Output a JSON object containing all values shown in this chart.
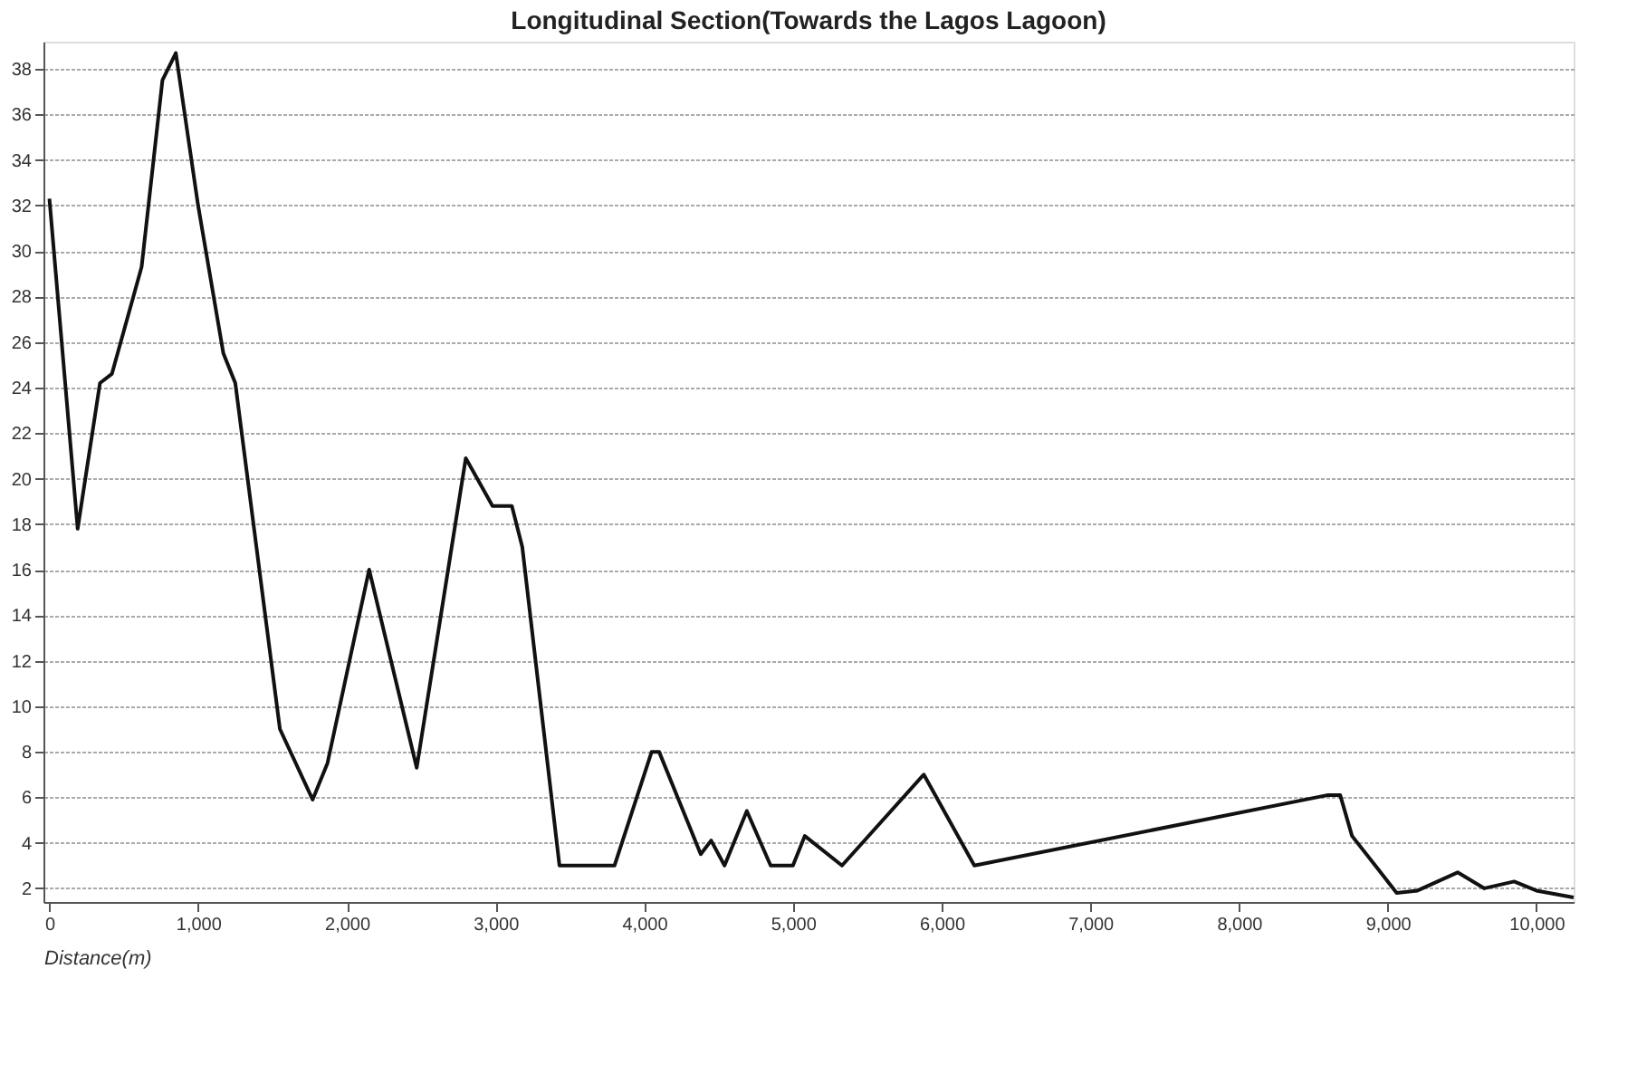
{
  "chart_data": {
    "type": "line",
    "title": "Longitudinal Section(Towards the Lagos Lagoon)",
    "xlabel": "Distance(m)",
    "x": [
      0,
      190,
      340,
      420,
      620,
      760,
      850,
      1000,
      1170,
      1250,
      1550,
      1770,
      1870,
      2150,
      2470,
      2800,
      2980,
      3110,
      3180,
      3430,
      3800,
      4050,
      4100,
      4380,
      4450,
      4540,
      4690,
      4850,
      5000,
      5080,
      5330,
      5880,
      6220,
      8600,
      8680,
      8760,
      9060,
      9200,
      9470,
      9650,
      9850,
      10000,
      10250
    ],
    "series": [
      {
        "color": "#111111",
        "values": [
          32.3,
          17.8,
          24.2,
          24.6,
          29.3,
          37.5,
          38.7,
          32,
          25.5,
          24.2,
          9,
          5.9,
          7.5,
          16,
          7.3,
          20.9,
          18.8,
          18.8,
          17,
          3,
          3,
          8,
          8,
          3.5,
          4.1,
          3,
          5.4,
          3,
          3,
          4.3,
          3,
          7,
          3,
          6.1,
          6.1,
          4.3,
          1.8,
          1.9,
          2.7,
          2.0,
          2.3,
          1.9,
          1.6
        ]
      }
    ],
    "xlim": [
      -40,
      10250
    ],
    "ylim": [
      1.4,
      39.2
    ],
    "xticks": [
      {
        "value": 0,
        "label": "0"
      },
      {
        "value": 1000,
        "label": "1,000"
      },
      {
        "value": 2000,
        "label": "2,000"
      },
      {
        "value": 3000,
        "label": "3,000"
      },
      {
        "value": 4000,
        "label": "4,000"
      },
      {
        "value": 5000,
        "label": "5,000"
      },
      {
        "value": 6000,
        "label": "6,000"
      },
      {
        "value": 7000,
        "label": "7,000"
      },
      {
        "value": 8000,
        "label": "8,000"
      },
      {
        "value": 9000,
        "label": "9,000"
      },
      {
        "value": 10000,
        "label": "10,000"
      }
    ],
    "yticks": [
      2,
      4,
      6,
      8,
      10,
      12,
      14,
      16,
      18,
      20,
      22,
      24,
      26,
      28,
      30,
      32,
      34,
      36,
      38
    ],
    "grid": "y",
    "legend": false,
    "marker": "none",
    "line_style": "solid"
  }
}
